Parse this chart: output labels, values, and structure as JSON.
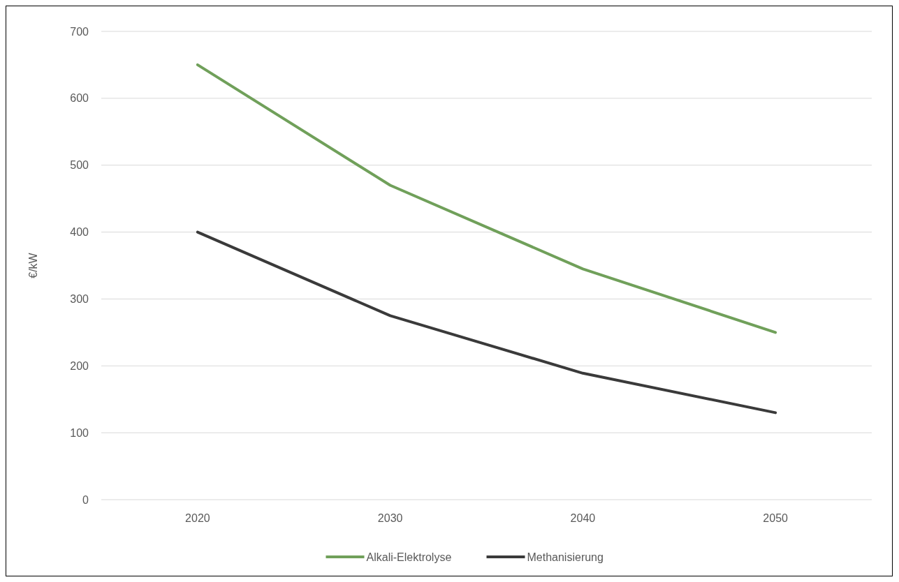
{
  "chart_data": {
    "type": "line",
    "ylabel": "€/kW",
    "categories": [
      "2020",
      "2030",
      "2040",
      "2050"
    ],
    "series": [
      {
        "name": "Alkali-Elektrolyse",
        "color": "#70a05a",
        "values": [
          650,
          470,
          345,
          250
        ]
      },
      {
        "name": "Methanisierung",
        "color": "#3a3a3a",
        "values": [
          400,
          275,
          189,
          130
        ]
      }
    ],
    "ylim": [
      0,
      700
    ],
    "yticks": [
      0,
      100,
      200,
      300,
      400,
      500,
      600,
      700
    ],
    "grid": "y",
    "legend": "bottom",
    "marker": "none",
    "line_style": "solid"
  }
}
